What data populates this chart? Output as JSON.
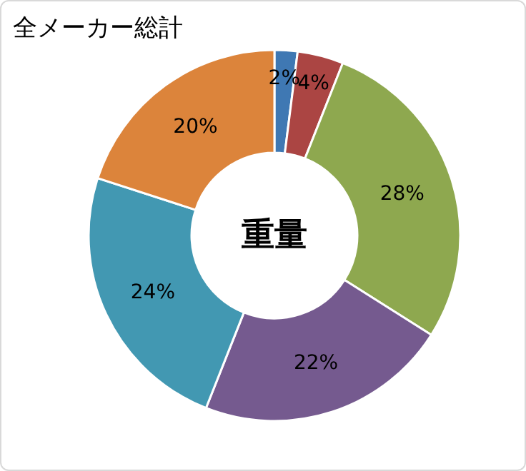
{
  "chart_data": {
    "type": "donut",
    "title": "全メーカー総計",
    "annotations": [
      "重量"
    ],
    "categories": [
      null,
      null,
      null,
      null,
      null,
      null
    ],
    "values": [
      2,
      4,
      28,
      22,
      24,
      20
    ],
    "value_labels": [
      "2%",
      "4%",
      "28%",
      "22%",
      "24%",
      "20%"
    ],
    "colors": [
      "#3f78b3",
      "#ab4543",
      "#8ea84f",
      "#755a8f",
      "#4298b2",
      "#dc843b"
    ]
  }
}
